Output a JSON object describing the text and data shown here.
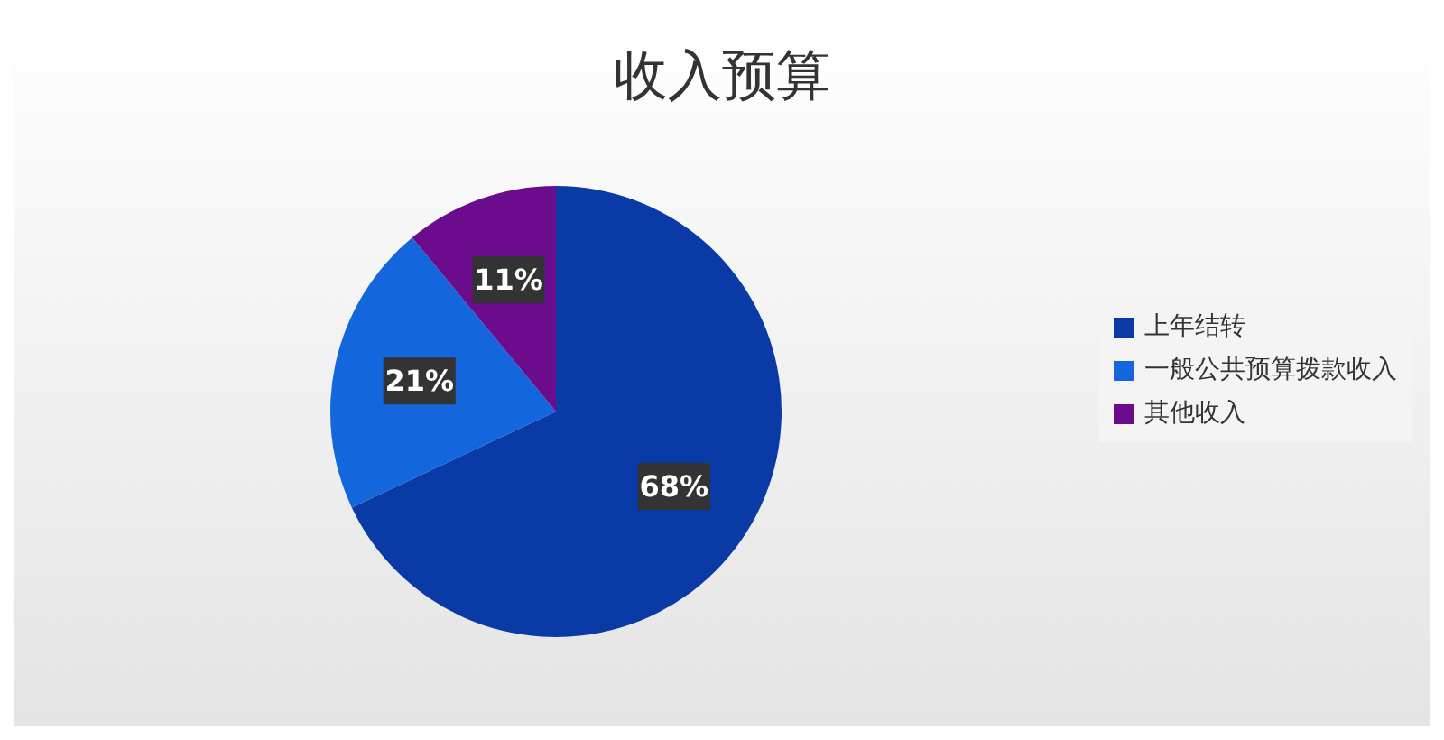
{
  "chart_data": {
    "type": "pie",
    "title": "收入预算",
    "categories": [
      "上年结转",
      "一般公共预算拨款收入",
      "其他收入"
    ],
    "values": [
      68,
      21,
      11
    ],
    "colors": [
      "#0a3aa6",
      "#1366dc",
      "#6a0c8c"
    ],
    "value_labels": [
      "68%",
      "21%",
      "11%"
    ],
    "legend": "right"
  }
}
